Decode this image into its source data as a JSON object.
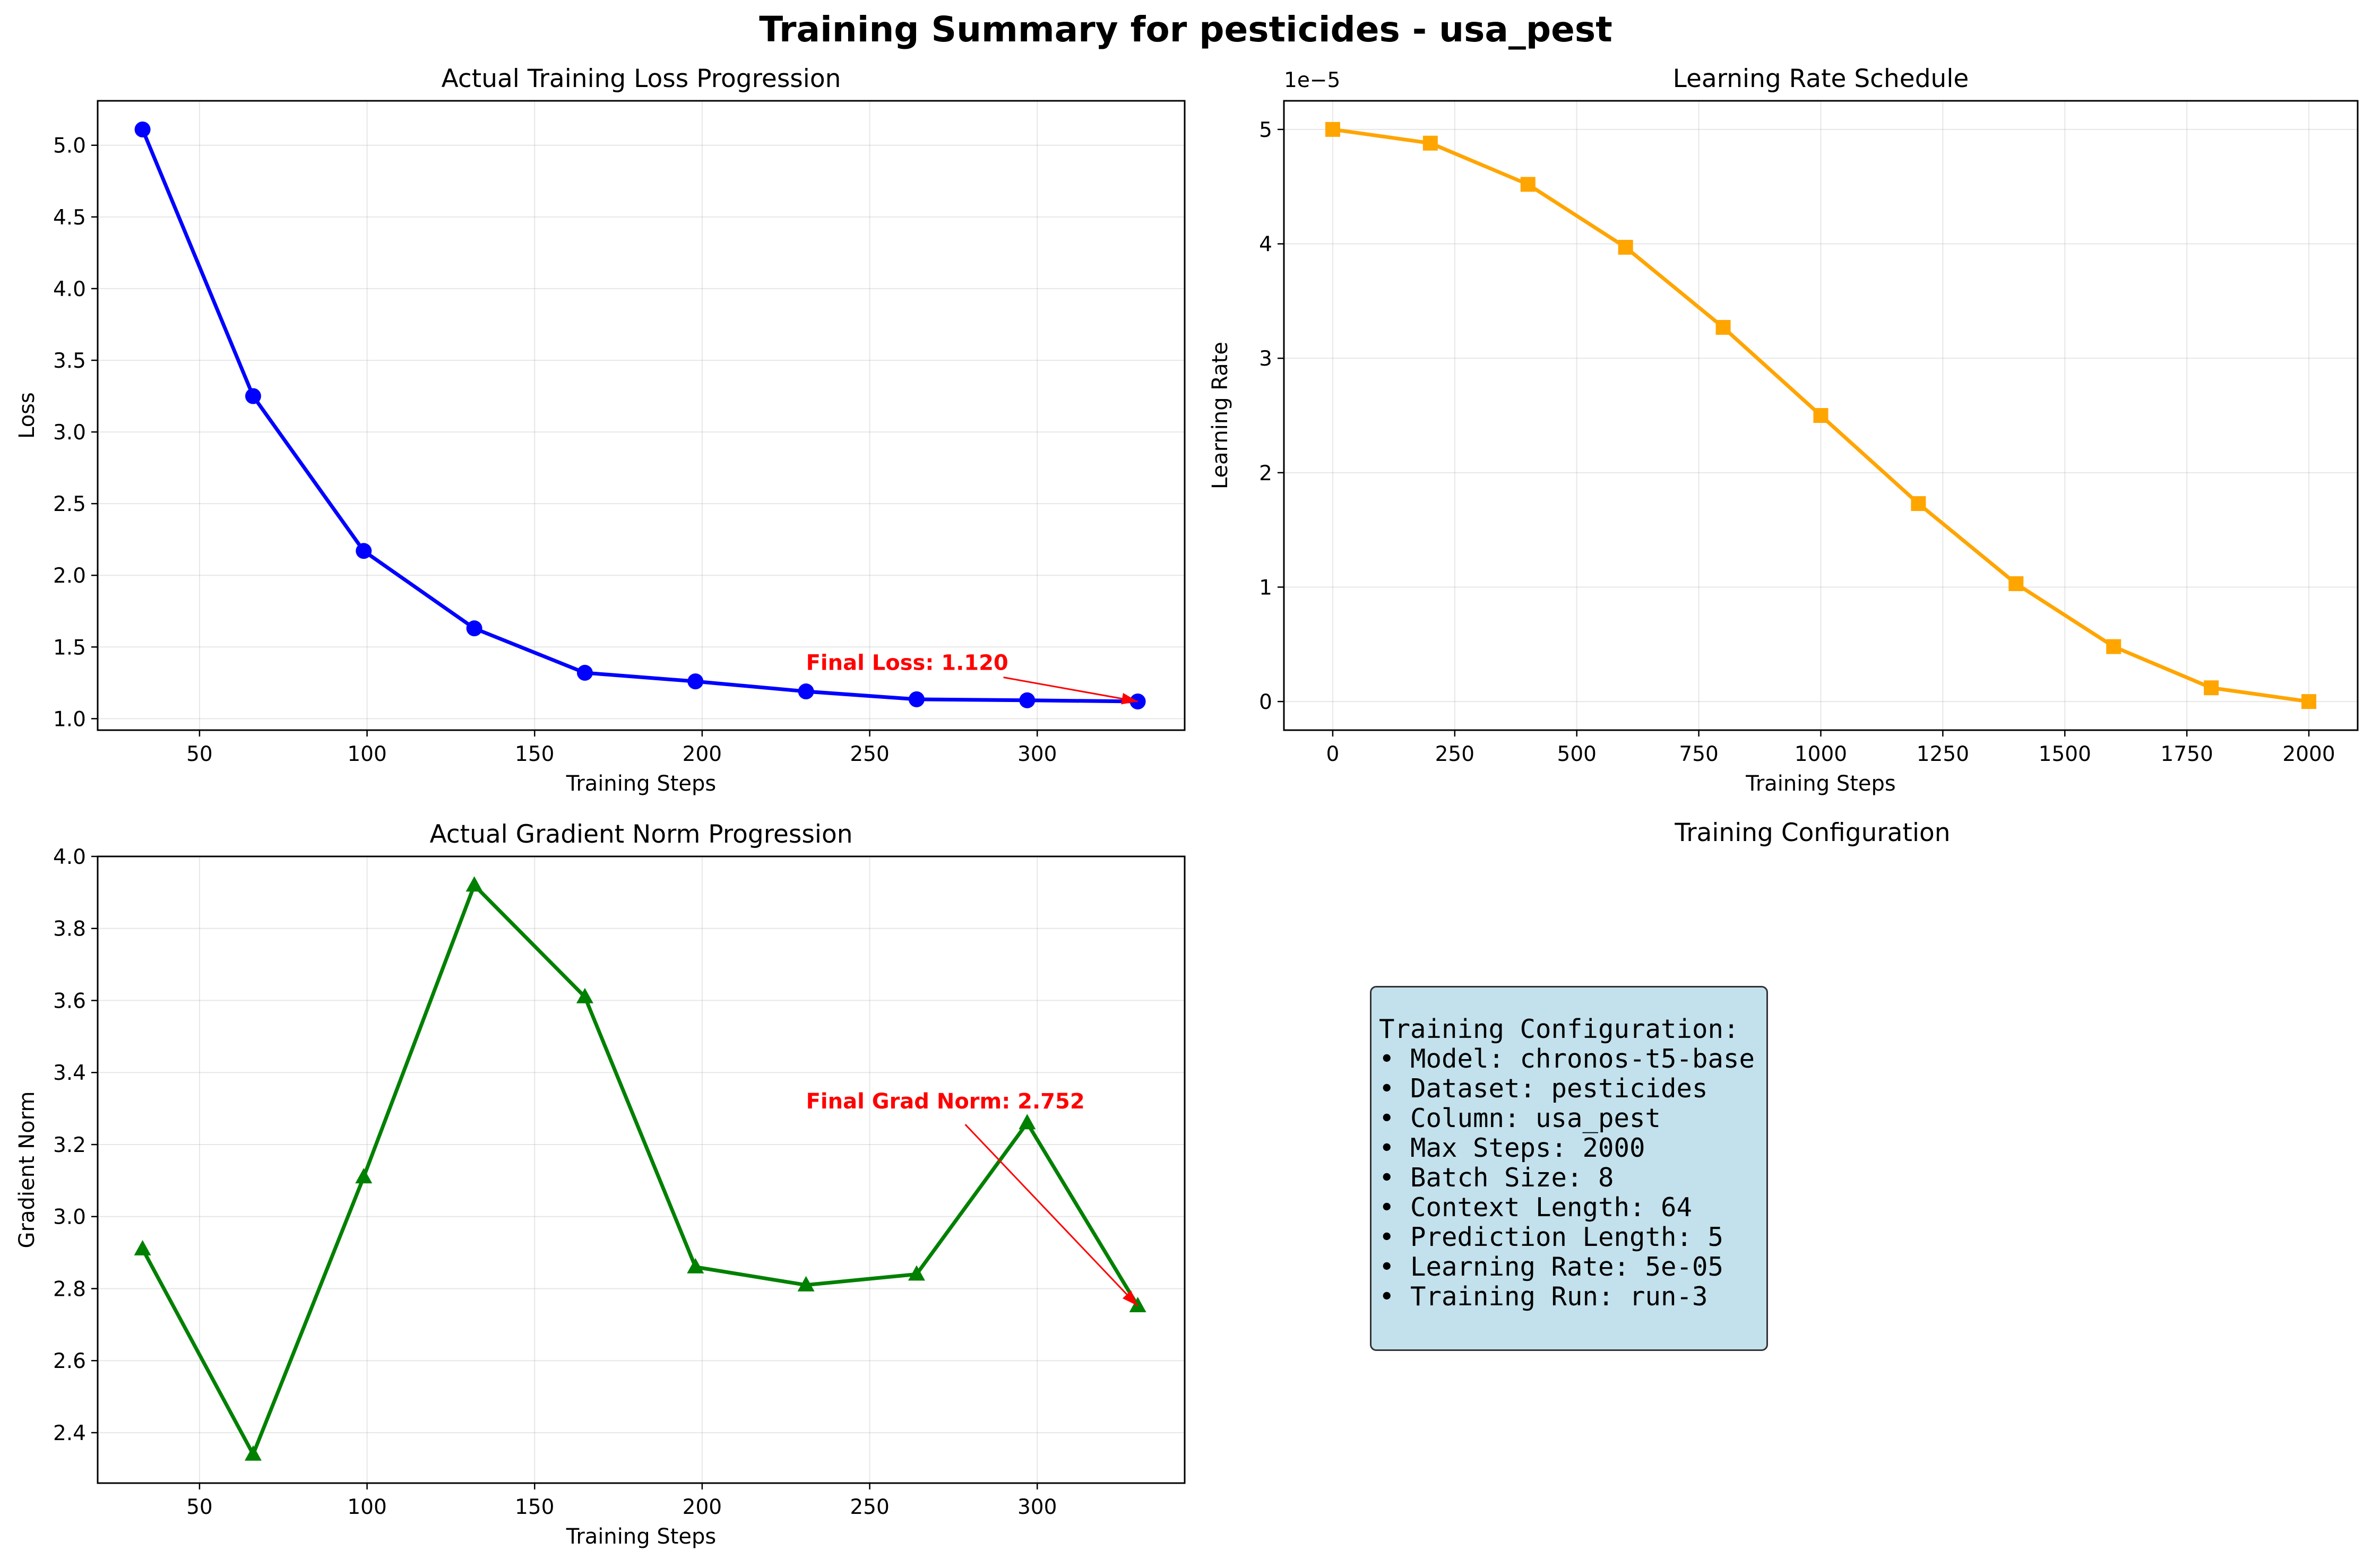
{
  "figure": {
    "suptitle": "Training Summary for pesticides - usa_pest"
  },
  "chart_data": [
    {
      "type": "line",
      "title": "Actual Training Loss Progression",
      "xlabel": "Training Steps",
      "ylabel": "Loss",
      "xlim": [
        19.6,
        344
      ],
      "ylim": [
        0.92,
        5.31
      ],
      "xticks": [
        50,
        100,
        150,
        200,
        250,
        300
      ],
      "yticks": [
        1.0,
        1.5,
        2.0,
        2.5,
        3.0,
        3.5,
        4.0,
        4.5,
        5.0
      ],
      "ytick_labels": [
        "1.0",
        "1.5",
        "2.0",
        "2.5",
        "3.0",
        "3.5",
        "4.0",
        "4.5",
        "5.0"
      ],
      "grid": true,
      "series": [
        {
          "color": "#0000ff",
          "marker": "circle",
          "x": [
            33,
            66,
            99,
            132,
            165,
            198,
            231,
            264,
            297,
            330
          ],
          "y": [
            5.11,
            3.25,
            2.17,
            1.63,
            1.32,
            1.26,
            1.19,
            1.135,
            1.128,
            1.12
          ]
        }
      ],
      "annotation": {
        "text": "Final Loss: 1.120",
        "color": "#ff0000",
        "text_at": [
          231,
          1.34
        ],
        "arrow_to": [
          330,
          1.12
        ]
      }
    },
    {
      "type": "line",
      "title": "Learning Rate Schedule",
      "xlabel": "Training Steps",
      "ylabel": "Learning Rate",
      "offset_label": "1e−5",
      "xlim": [
        -100,
        2100
      ],
      "ylim": [
        -0.25,
        5.25
      ],
      "xticks": [
        0,
        250,
        500,
        750,
        1000,
        1250,
        1500,
        1750,
        2000
      ],
      "yticks": [
        0,
        1,
        2,
        3,
        4,
        5
      ],
      "ytick_labels": [
        "0",
        "1",
        "2",
        "3",
        "4",
        "5"
      ],
      "grid": true,
      "series": [
        {
          "color": "#ffa500",
          "marker": "square",
          "x": [
            0,
            200,
            400,
            600,
            800,
            1000,
            1200,
            1400,
            1600,
            1800,
            2000
          ],
          "y": [
            5.0,
            4.88,
            4.52,
            3.97,
            3.27,
            2.5,
            1.73,
            1.03,
            0.48,
            0.12,
            0.0
          ]
        }
      ]
    },
    {
      "type": "line",
      "title": "Actual Gradient Norm Progression",
      "xlabel": "Training Steps",
      "ylabel": "Gradient Norm",
      "xlim": [
        19.6,
        344
      ],
      "ylim": [
        2.26,
        4.0
      ],
      "xticks": [
        50,
        100,
        150,
        200,
        250,
        300
      ],
      "yticks": [
        2.4,
        2.6,
        2.8,
        3.0,
        3.2,
        3.4,
        3.6,
        3.8,
        4.0
      ],
      "ytick_labels": [
        "2.4",
        "2.6",
        "2.8",
        "3.0",
        "3.2",
        "3.4",
        "3.6",
        "3.8",
        "4.0"
      ],
      "grid": true,
      "series": [
        {
          "color": "#008000",
          "marker": "triangle",
          "x": [
            33,
            66,
            99,
            132,
            165,
            198,
            231,
            264,
            297,
            330
          ],
          "y": [
            2.91,
            2.34,
            3.11,
            3.92,
            3.61,
            2.86,
            2.81,
            2.84,
            3.26,
            2.752
          ]
        }
      ],
      "annotation": {
        "text": "Final Grad Norm: 2.752",
        "color": "#ff0000",
        "text_at": [
          231,
          3.3
        ],
        "arrow_to": [
          330,
          2.752
        ]
      }
    }
  ],
  "config_panel": {
    "title": "Training Configuration",
    "lines": [
      "Training Configuration:",
      "• Model: chronos-t5-base",
      "• Dataset: pesticides",
      "• Column: usa_pest",
      "• Max Steps: 2000",
      "• Batch Size: 8",
      "• Context Length: 64",
      "• Prediction Length: 5",
      "• Learning Rate: 5e-05",
      "• Training Run: run-3"
    ]
  }
}
